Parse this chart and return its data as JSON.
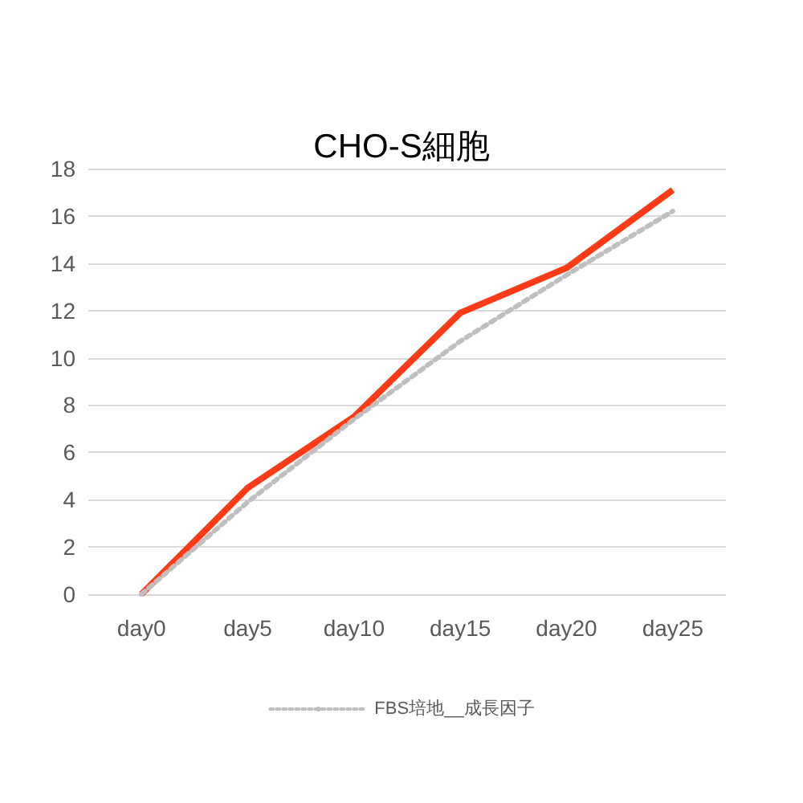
{
  "chart_data": {
    "type": "line",
    "title": "CHO-S細胞",
    "categories": [
      "day0",
      "day5",
      "day10",
      "day15",
      "day20",
      "day25"
    ],
    "series": [
      {
        "color": "#ff3a17",
        "values": [
          0,
          4.5,
          7.5,
          11.9,
          13.8,
          17.1
        ],
        "line_style": "solid"
      },
      {
        "name": "FBS培地__成長因子",
        "color": "#bfbfbf",
        "values": [
          0,
          3.9,
          7.4,
          10.7,
          13.5,
          16.2
        ],
        "line_style": "dotted"
      }
    ],
    "ylim": [
      0,
      18
    ],
    "yticks": [
      0,
      2,
      4,
      6,
      8,
      10,
      12,
      14,
      16,
      18
    ],
    "grid": "y",
    "legend": "bottom",
    "marker": "none"
  }
}
